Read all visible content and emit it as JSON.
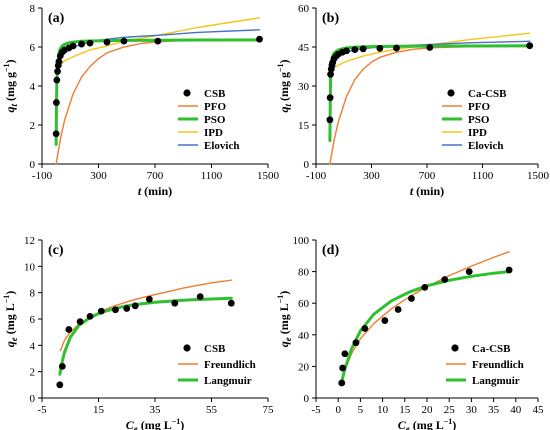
{
  "figure": {
    "colors": {
      "PFO": "#ED7D31",
      "PSO": "#2FBF2F",
      "IPD": "#F5C518",
      "Elovich": "#4472C4",
      "Freundlich": "#ED7D31",
      "Langmuir": "#2FBF2F",
      "points": "#000000"
    }
  },
  "chart_data": [
    {
      "panel": "(a)",
      "type": "scatter",
      "xlabel": "t (min)",
      "ylabel": "qt (mg g−1)",
      "xlim": [
        -100,
        1500
      ],
      "ylim": [
        0,
        8
      ],
      "xticks": [
        "-100",
        "300",
        "700",
        "1100",
        "1500"
      ],
      "yticks": [
        "0",
        "2",
        "4",
        "6",
        "8"
      ],
      "legend": [
        "CSB",
        "PFO",
        "PSO",
        "IPD",
        "Elovich"
      ],
      "legend_position": "center-right",
      "points": {
        "name": "CSB",
        "x": [
          0,
          2,
          5,
          10,
          15,
          20,
          30,
          45,
          60,
          90,
          120,
          180,
          240,
          360,
          480,
          720,
          1440
        ],
        "y": [
          1.55,
          3.15,
          4.3,
          4.75,
          5.05,
          5.25,
          5.55,
          5.75,
          5.85,
          5.95,
          6.05,
          6.15,
          6.2,
          6.25,
          6.3,
          6.3,
          6.4
        ]
      },
      "series": [
        {
          "name": "PFO",
          "x": [
            0,
            30,
            60,
            120,
            180,
            240,
            300,
            360,
            480,
            600,
            720,
            900,
            1100,
            1440
          ],
          "y": [
            0,
            1.27,
            2.25,
            3.6,
            4.45,
            5.0,
            5.4,
            5.7,
            6.0,
            6.18,
            6.27,
            6.33,
            6.35,
            6.36
          ]
        },
        {
          "name": "PSO",
          "x": [
            0,
            2,
            5,
            10,
            20,
            30,
            45,
            60,
            90,
            120,
            180,
            240,
            360,
            480,
            720,
            1000,
            1440
          ],
          "y": [
            1.0,
            2.6,
            4.1,
            5.1,
            5.72,
            5.93,
            6.07,
            6.14,
            6.21,
            6.25,
            6.29,
            6.31,
            6.33,
            6.34,
            6.35,
            6.36,
            6.36
          ]
        },
        {
          "name": "IPD",
          "x": [
            0,
            5,
            10,
            20,
            30,
            60,
            120,
            240,
            360,
            480,
            720,
            1000,
            1440
          ],
          "y": [
            4.55,
            4.68,
            4.8,
            4.95,
            5.05,
            5.3,
            5.5,
            5.85,
            6.05,
            6.3,
            6.6,
            7.0,
            7.5
          ]
        },
        {
          "name": "Elovich",
          "x": [
            1,
            2,
            5,
            10,
            20,
            30,
            60,
            120,
            240,
            360,
            480,
            720,
            1000,
            1440
          ],
          "y": [
            3.85,
            4.2,
            4.6,
            4.95,
            5.25,
            5.42,
            5.75,
            6.0,
            6.25,
            6.4,
            6.5,
            6.6,
            6.75,
            6.88
          ]
        }
      ]
    },
    {
      "panel": "(b)",
      "type": "scatter",
      "xlabel": "t (min)",
      "ylabel": "qt (mg g−1)",
      "xlim": [
        -100,
        1500
      ],
      "ylim": [
        0,
        60
      ],
      "xticks": [
        "-100",
        "300",
        "700",
        "1100",
        "1500"
      ],
      "yticks": [
        "0",
        "15",
        "30",
        "45",
        "60"
      ],
      "legend": [
        "Ca-CSB",
        "PFO",
        "PSO",
        "IPD",
        "Elovich"
      ],
      "legend_position": "center-right",
      "points": {
        "name": "Ca-CSB",
        "x": [
          0,
          2,
          5,
          10,
          15,
          20,
          30,
          45,
          60,
          90,
          120,
          180,
          240,
          360,
          480,
          720,
          1440
        ],
        "y": [
          17,
          25.5,
          34.5,
          36.5,
          38,
          39,
          40.5,
          41.5,
          42.2,
          43,
          43.5,
          44,
          44.3,
          44.5,
          44.6,
          44.8,
          45.5
        ]
      },
      "series": [
        {
          "name": "PFO",
          "x": [
            0,
            30,
            60,
            120,
            180,
            240,
            300,
            360,
            480,
            600,
            720,
            900,
            1100,
            1440
          ],
          "y": [
            0,
            9,
            16,
            26,
            32.5,
            36.5,
            39.2,
            41,
            43,
            44.1,
            44.7,
            45.0,
            45.15,
            45.2
          ]
        },
        {
          "name": "PSO",
          "x": [
            0,
            2,
            5,
            10,
            20,
            30,
            45,
            60,
            90,
            120,
            180,
            240,
            360,
            480,
            720,
            1000,
            1440
          ],
          "y": [
            9,
            22,
            33,
            38.5,
            41.5,
            42.6,
            43.3,
            43.8,
            44.3,
            44.6,
            44.9,
            45.05,
            45.2,
            45.3,
            45.35,
            45.4,
            45.45
          ]
        },
        {
          "name": "IPD",
          "x": [
            0,
            10,
            30,
            60,
            120,
            240,
            360,
            480,
            720,
            1000,
            1440
          ],
          "y": [
            35.5,
            36.3,
            37,
            38,
            39.5,
            41.5,
            43,
            44.2,
            45.8,
            47.8,
            50.3
          ]
        },
        {
          "name": "Elovich",
          "x": [
            1,
            2,
            5,
            10,
            20,
            30,
            60,
            120,
            240,
            360,
            480,
            720,
            1000,
            1440
          ],
          "y": [
            33,
            34.5,
            36.5,
            38.2,
            39.8,
            40.7,
            42,
            43.2,
            44.4,
            45,
            45.4,
            46,
            46.6,
            47.2
          ]
        }
      ]
    },
    {
      "panel": "(c)",
      "type": "scatter",
      "xlabel": "Ce (mg L−1)",
      "ylabel": "qe (mg L−1)",
      "xlim": [
        -5,
        75
      ],
      "ylim": [
        0,
        12
      ],
      "xticks": [
        "-5",
        "15",
        "35",
        "55",
        "75"
      ],
      "yticks": [
        "0",
        "2",
        "4",
        "6",
        "8",
        "10",
        "12"
      ],
      "legend": [
        "CSB",
        "Freundlich",
        "Langmuir"
      ],
      "legend_position": "bottom-right",
      "points": {
        "name": "CSB",
        "x": [
          1.3,
          2.2,
          4.5,
          8.5,
          12,
          16,
          21,
          25,
          28,
          33,
          42,
          51,
          62
        ],
        "y": [
          1.0,
          2.4,
          5.2,
          5.8,
          6.2,
          6.6,
          6.7,
          6.8,
          7.0,
          7.5,
          7.2,
          7.7,
          7.2
        ]
      },
      "series": [
        {
          "name": "Freundlich",
          "x": [
            1.5,
            3,
            5,
            8,
            12,
            16,
            20,
            25,
            30,
            35,
            40,
            45,
            50,
            55,
            62
          ],
          "y": [
            3.6,
            4.4,
            5.0,
            5.6,
            6.15,
            6.6,
            6.95,
            7.3,
            7.6,
            7.85,
            8.1,
            8.35,
            8.55,
            8.75,
            8.95
          ]
        },
        {
          "name": "Langmuir",
          "x": [
            1.3,
            2,
            3,
            5,
            8,
            12,
            16,
            20,
            25,
            30,
            35,
            40,
            45,
            50,
            55,
            62
          ],
          "y": [
            1.8,
            2.6,
            3.5,
            4.6,
            5.5,
            6.1,
            6.5,
            6.75,
            7.0,
            7.15,
            7.27,
            7.35,
            7.42,
            7.48,
            7.52,
            7.57
          ]
        }
      ]
    },
    {
      "panel": "(d)",
      "type": "scatter",
      "xlabel": "Ce (mg L−1)",
      "ylabel": "qe (mg L−1)",
      "xlim": [
        -5,
        45
      ],
      "ylim": [
        0,
        100
      ],
      "xticks": [
        "-5",
        "0",
        "5",
        "10",
        "15",
        "20",
        "25",
        "30",
        "35",
        "40",
        "45"
      ],
      "yticks": [
        "0",
        "20",
        "40",
        "60",
        "80",
        "100"
      ],
      "legend": [
        "Ca-CSB",
        "Freundlich",
        "Langmuir"
      ],
      "legend_position": "bottom-right",
      "points": {
        "name": "Ca-CSB",
        "x": [
          0.8,
          1.0,
          1.5,
          4.0,
          6.0,
          10.5,
          13.5,
          16.5,
          19.5,
          24.0,
          29.5,
          38.5
        ],
        "y": [
          9.5,
          19,
          28,
          35,
          44,
          49,
          56,
          63,
          70,
          75,
          80,
          81
        ]
      },
      "series": [
        {
          "name": "Freundlich",
          "x": [
            0.8,
            1.5,
            3,
            5,
            8,
            12,
            16,
            20,
            25,
            30,
            35,
            38.5
          ],
          "y": [
            9.5,
            17.5,
            28,
            37.5,
            47,
            56.5,
            64,
            70.5,
            77.5,
            83.5,
            89,
            92.5
          ]
        },
        {
          "name": "Langmuir",
          "x": [
            0.8,
            1.5,
            3,
            5,
            8,
            12,
            16,
            20,
            25,
            30,
            35,
            38.5
          ],
          "y": [
            10.5,
            18.5,
            31,
            42.5,
            53,
            61.5,
            67,
            71,
            74.5,
            77,
            79,
            80
          ]
        }
      ]
    }
  ]
}
